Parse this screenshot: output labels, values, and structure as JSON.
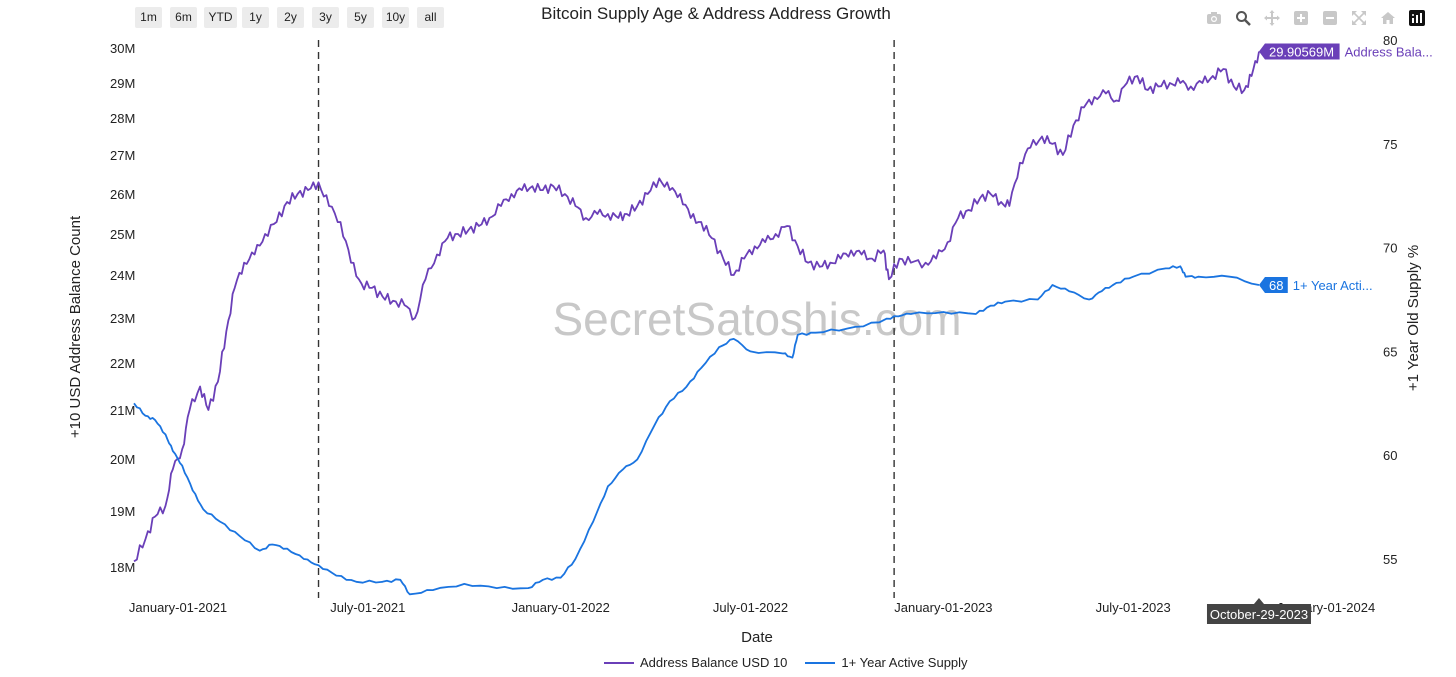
{
  "toolbar": {
    "range_buttons": [
      "1m",
      "6m",
      "YTD",
      "1y",
      "2y",
      "3y",
      "5y",
      "10y",
      "all"
    ],
    "icons": [
      "camera-icon",
      "zoom-icon",
      "pan-icon",
      "zoom-in-icon",
      "zoom-out-icon",
      "autoscale-icon",
      "reset-axes-icon",
      "plotly-logo-icon"
    ]
  },
  "chart_data": {
    "type": "line",
    "title": "Bitcoin Supply Age & Address Address Growth",
    "xlabel": "Date",
    "ylabel_left": "+10 USD Address Balance Count",
    "ylabel_right": "+1 Year Old Supply %",
    "x_range": [
      "2020-11-20",
      "2024-01-20"
    ],
    "x_ticks": [
      "January-01-2021",
      "July-01-2021",
      "January-01-2022",
      "July-01-2022",
      "January-01-2023",
      "July-01-2023",
      "January-01-2024"
    ],
    "y_left_ticks": [
      "18M",
      "19M",
      "20M",
      "21M",
      "22M",
      "23M",
      "24M",
      "25M",
      "26M",
      "27M",
      "28M",
      "29M",
      "30M"
    ],
    "y_right_ticks": [
      "55",
      "60",
      "65",
      "70",
      "75",
      "80"
    ],
    "y_right_range": [
      53.9,
      80
    ],
    "vlines": [
      "2021-05-15",
      "2022-11-15"
    ],
    "hover_date": "October-29-2023",
    "watermark": "SecretSatoshis.com",
    "series": [
      {
        "name": "Address Balance USD 10",
        "axis": "left",
        "color": "#6a3fb8",
        "last_label": "29.90569M",
        "last_label_name": "Address Bala...",
        "points": [
          [
            "2020-11-20",
            18.1
          ],
          [
            "2020-12-01",
            18.5
          ],
          [
            "2020-12-10",
            18.9
          ],
          [
            "2020-12-20",
            19.1
          ],
          [
            "2020-12-27",
            19.8
          ],
          [
            "2021-01-05",
            20.2
          ],
          [
            "2021-01-12",
            21.0
          ],
          [
            "2021-01-22",
            21.5
          ],
          [
            "2021-01-30",
            21.0
          ],
          [
            "2021-02-08",
            21.6
          ],
          [
            "2021-02-16",
            22.7
          ],
          [
            "2021-02-24",
            23.7
          ],
          [
            "2021-03-05",
            24.3
          ],
          [
            "2021-03-15",
            24.5
          ],
          [
            "2021-03-25",
            25.0
          ],
          [
            "2021-04-05",
            25.3
          ],
          [
            "2021-04-15",
            25.8
          ],
          [
            "2021-04-25",
            26.0
          ],
          [
            "2021-05-05",
            26.1
          ],
          [
            "2021-05-15",
            26.3
          ],
          [
            "2021-05-25",
            25.7
          ],
          [
            "2021-06-05",
            25.3
          ],
          [
            "2021-06-15",
            24.3
          ],
          [
            "2021-06-25",
            23.8
          ],
          [
            "2021-07-05",
            23.7
          ],
          [
            "2021-07-15",
            23.5
          ],
          [
            "2021-07-25",
            23.4
          ],
          [
            "2021-08-05",
            23.3
          ],
          [
            "2021-08-15",
            23.0
          ],
          [
            "2021-08-25",
            23.9
          ],
          [
            "2021-09-05",
            24.5
          ],
          [
            "2021-09-15",
            24.9
          ],
          [
            "2021-09-25",
            25.0
          ],
          [
            "2021-10-05",
            25.1
          ],
          [
            "2021-10-15",
            25.2
          ],
          [
            "2021-10-25",
            25.4
          ],
          [
            "2021-11-05",
            25.7
          ],
          [
            "2021-11-15",
            26.0
          ],
          [
            "2021-11-25",
            26.1
          ],
          [
            "2021-12-05",
            26.2
          ],
          [
            "2021-12-15",
            26.1
          ],
          [
            "2021-12-25",
            26.2
          ],
          [
            "2022-01-05",
            26.0
          ],
          [
            "2022-01-15",
            25.7
          ],
          [
            "2022-01-25",
            25.4
          ],
          [
            "2022-02-05",
            25.5
          ],
          [
            "2022-02-15",
            25.5
          ],
          [
            "2022-02-25",
            25.4
          ],
          [
            "2022-03-05",
            25.5
          ],
          [
            "2022-03-15",
            25.7
          ],
          [
            "2022-03-25",
            26.0
          ],
          [
            "2022-04-05",
            26.4
          ],
          [
            "2022-04-15",
            26.1
          ],
          [
            "2022-04-25",
            26.0
          ],
          [
            "2022-05-05",
            25.4
          ],
          [
            "2022-05-15",
            25.3
          ],
          [
            "2022-05-25",
            24.9
          ],
          [
            "2022-06-05",
            24.4
          ],
          [
            "2022-06-15",
            24.0
          ],
          [
            "2022-06-25",
            24.4
          ],
          [
            "2022-07-05",
            24.7
          ],
          [
            "2022-07-15",
            24.8
          ],
          [
            "2022-07-25",
            25.0
          ],
          [
            "2022-08-05",
            25.2
          ],
          [
            "2022-08-15",
            24.7
          ],
          [
            "2022-08-25",
            24.3
          ],
          [
            "2022-09-05",
            24.2
          ],
          [
            "2022-09-15",
            24.3
          ],
          [
            "2022-09-25",
            24.4
          ],
          [
            "2022-10-05",
            24.6
          ],
          [
            "2022-10-15",
            24.5
          ],
          [
            "2022-10-25",
            24.4
          ],
          [
            "2022-11-05",
            24.6
          ],
          [
            "2022-11-10",
            23.9
          ],
          [
            "2022-11-20",
            24.4
          ],
          [
            "2022-12-01",
            24.3
          ],
          [
            "2022-12-15",
            24.3
          ],
          [
            "2022-12-25",
            24.4
          ],
          [
            "2023-01-05",
            24.8
          ],
          [
            "2023-01-15",
            25.4
          ],
          [
            "2023-01-25",
            25.6
          ],
          [
            "2023-02-05",
            25.9
          ],
          [
            "2023-02-15",
            26.0
          ],
          [
            "2023-02-25",
            25.8
          ],
          [
            "2023-03-05",
            25.7
          ],
          [
            "2023-03-15",
            26.8
          ],
          [
            "2023-03-25",
            27.2
          ],
          [
            "2023-04-05",
            27.5
          ],
          [
            "2023-04-15",
            27.3
          ],
          [
            "2023-04-25",
            27.0
          ],
          [
            "2023-05-05",
            27.8
          ],
          [
            "2023-05-15",
            28.3
          ],
          [
            "2023-05-25",
            28.6
          ],
          [
            "2023-06-05",
            28.7
          ],
          [
            "2023-06-15",
            28.5
          ],
          [
            "2023-06-25",
            29.0
          ],
          [
            "2023-07-05",
            29.2
          ],
          [
            "2023-07-15",
            28.8
          ],
          [
            "2023-07-25",
            28.9
          ],
          [
            "2023-08-05",
            29.0
          ],
          [
            "2023-08-15",
            29.0
          ],
          [
            "2023-08-25",
            28.9
          ],
          [
            "2023-09-05",
            29.0
          ],
          [
            "2023-09-15",
            29.2
          ],
          [
            "2023-09-25",
            29.4
          ],
          [
            "2023-10-05",
            28.9
          ],
          [
            "2023-10-15",
            28.8
          ],
          [
            "2023-10-22",
            29.2
          ],
          [
            "2023-10-29",
            29.9
          ]
        ]
      },
      {
        "name": "1+ Year Active Supply",
        "axis": "right",
        "color": "#1a74e0",
        "last_label": "68",
        "last_label_name": "1+ Year Acti...",
        "points": [
          [
            "2020-11-20",
            62.5
          ],
          [
            "2020-12-01",
            61.9
          ],
          [
            "2020-12-10",
            61.7
          ],
          [
            "2020-12-20",
            61.0
          ],
          [
            "2020-12-27",
            60.2
          ],
          [
            "2021-01-05",
            59.5
          ],
          [
            "2021-01-15",
            58.3
          ],
          [
            "2021-01-25",
            57.4
          ],
          [
            "2021-02-10",
            56.8
          ],
          [
            "2021-03-01",
            56.1
          ],
          [
            "2021-03-20",
            55.4
          ],
          [
            "2021-04-01",
            55.7
          ],
          [
            "2021-04-15",
            55.5
          ],
          [
            "2021-05-01",
            55.0
          ],
          [
            "2021-05-15",
            54.7
          ],
          [
            "2021-06-01",
            54.2
          ],
          [
            "2021-06-20",
            53.9
          ],
          [
            "2021-07-15",
            53.9
          ],
          [
            "2021-08-01",
            54.0
          ],
          [
            "2021-08-10",
            53.3
          ],
          [
            "2021-09-01",
            53.5
          ],
          [
            "2021-10-01",
            53.8
          ],
          [
            "2021-11-01",
            53.6
          ],
          [
            "2021-12-01",
            53.6
          ],
          [
            "2021-12-15",
            54.0
          ],
          [
            "2022-01-01",
            54.1
          ],
          [
            "2022-01-15",
            55.0
          ],
          [
            "2022-02-01",
            56.8
          ],
          [
            "2022-02-15",
            58.5
          ],
          [
            "2022-03-01",
            59.3
          ],
          [
            "2022-03-15",
            59.8
          ],
          [
            "2022-04-01",
            61.5
          ],
          [
            "2022-04-15",
            62.6
          ],
          [
            "2022-05-01",
            63.3
          ],
          [
            "2022-05-15",
            64.2
          ],
          [
            "2022-06-01",
            65.2
          ],
          [
            "2022-06-15",
            65.6
          ],
          [
            "2022-07-01",
            65.0
          ],
          [
            "2022-08-01",
            64.9
          ],
          [
            "2022-08-10",
            64.7
          ],
          [
            "2022-08-15",
            65.8
          ],
          [
            "2022-09-01",
            65.9
          ],
          [
            "2022-10-01",
            66.1
          ],
          [
            "2022-11-01",
            66.4
          ],
          [
            "2022-11-15",
            66.7
          ],
          [
            "2022-12-01",
            66.8
          ],
          [
            "2023-01-01",
            66.9
          ],
          [
            "2023-02-01",
            66.8
          ],
          [
            "2023-02-15",
            67.2
          ],
          [
            "2023-03-01",
            67.4
          ],
          [
            "2023-04-01",
            67.5
          ],
          [
            "2023-04-15",
            68.2
          ],
          [
            "2023-05-01",
            67.9
          ],
          [
            "2023-05-20",
            67.5
          ],
          [
            "2023-06-01",
            67.9
          ],
          [
            "2023-06-15",
            68.3
          ],
          [
            "2023-07-01",
            68.6
          ],
          [
            "2023-08-01",
            69.0
          ],
          [
            "2023-08-15",
            69.1
          ],
          [
            "2023-08-20",
            68.6
          ],
          [
            "2023-09-01",
            68.6
          ],
          [
            "2023-10-01",
            68.6
          ],
          [
            "2023-10-29",
            68.2
          ]
        ]
      }
    ]
  }
}
